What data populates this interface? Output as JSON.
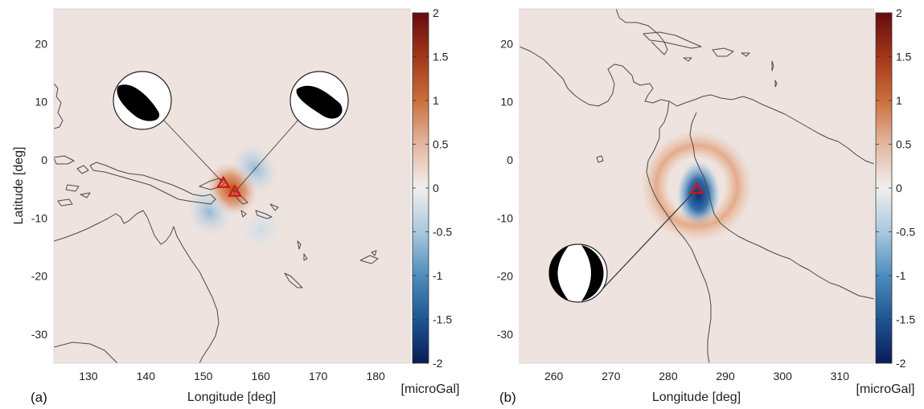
{
  "chart_data": [
    {
      "panel": "(a)",
      "type": "heatmap",
      "xlabel": "Longitude [deg]",
      "ylabel": "Latitude [deg]",
      "xlim": [
        124,
        186
      ],
      "ylim": [
        -35,
        26
      ],
      "xticks": [
        130,
        140,
        150,
        160,
        170,
        180
      ],
      "yticks": [
        20,
        10,
        0,
        -10,
        -20,
        -30
      ],
      "colorbar": {
        "label": "[microGal]",
        "range": [
          -2,
          2
        ],
        "ticks": [
          2,
          1.5,
          1,
          0.5,
          0,
          -0.5,
          -1,
          -1.5,
          -2
        ],
        "tick_labels": [
          "2",
          "1.5",
          "1",
          "0.5",
          "0",
          "-0.5",
          "-1",
          "-1.5",
          "-2"
        ]
      },
      "anomaly_lobes": [
        {
          "lon": 155,
          "lat": -5,
          "value": 0.9
        },
        {
          "lon": 159,
          "lat": -1.5,
          "value": -0.4
        },
        {
          "lon": 151,
          "lat": -9,
          "value": -0.4
        },
        {
          "lon": 160,
          "lat": -12,
          "value": -0.15
        }
      ],
      "epicenters": [
        {
          "lon": 153.5,
          "lat": -4.0
        },
        {
          "lon": 155.5,
          "lat": -5.5
        }
      ],
      "focal_mechanisms": [
        {
          "lon": 140,
          "lat": 11,
          "style": "thrust-left"
        },
        {
          "lon": 170,
          "lat": 11,
          "style": "thrust-right"
        }
      ]
    },
    {
      "panel": "(b)",
      "type": "heatmap",
      "xlabel": "Longitude [deg]",
      "ylabel": "",
      "xlim": [
        254,
        316
      ],
      "ylim": [
        -35,
        26
      ],
      "xticks": [
        260,
        270,
        280,
        290,
        300,
        310
      ],
      "yticks": [
        20,
        10,
        0,
        -10,
        -20,
        -30
      ],
      "colorbar": {
        "label": "[microGal]",
        "range": [
          -2,
          2
        ],
        "ticks": [
          2,
          1.5,
          1,
          0.5,
          0,
          -0.5,
          -1,
          -1.5,
          -2
        ],
        "tick_labels": [
          "2",
          "1.5",
          "1",
          "0.5",
          "0",
          "-0.5",
          "-1",
          "-1.5",
          "-2"
        ]
      },
      "anomaly_lobes": [
        {
          "lon": 285.3,
          "lat": -6,
          "value": -1.8
        },
        {
          "lon": 285,
          "lat": -4.5,
          "value": 0.45,
          "shape": "ring"
        }
      ],
      "epicenters": [
        {
          "lon": 285,
          "lat": -5
        }
      ],
      "focal_mechanisms": [
        {
          "lon": 265,
          "lat": -20,
          "style": "normal"
        }
      ]
    }
  ]
}
